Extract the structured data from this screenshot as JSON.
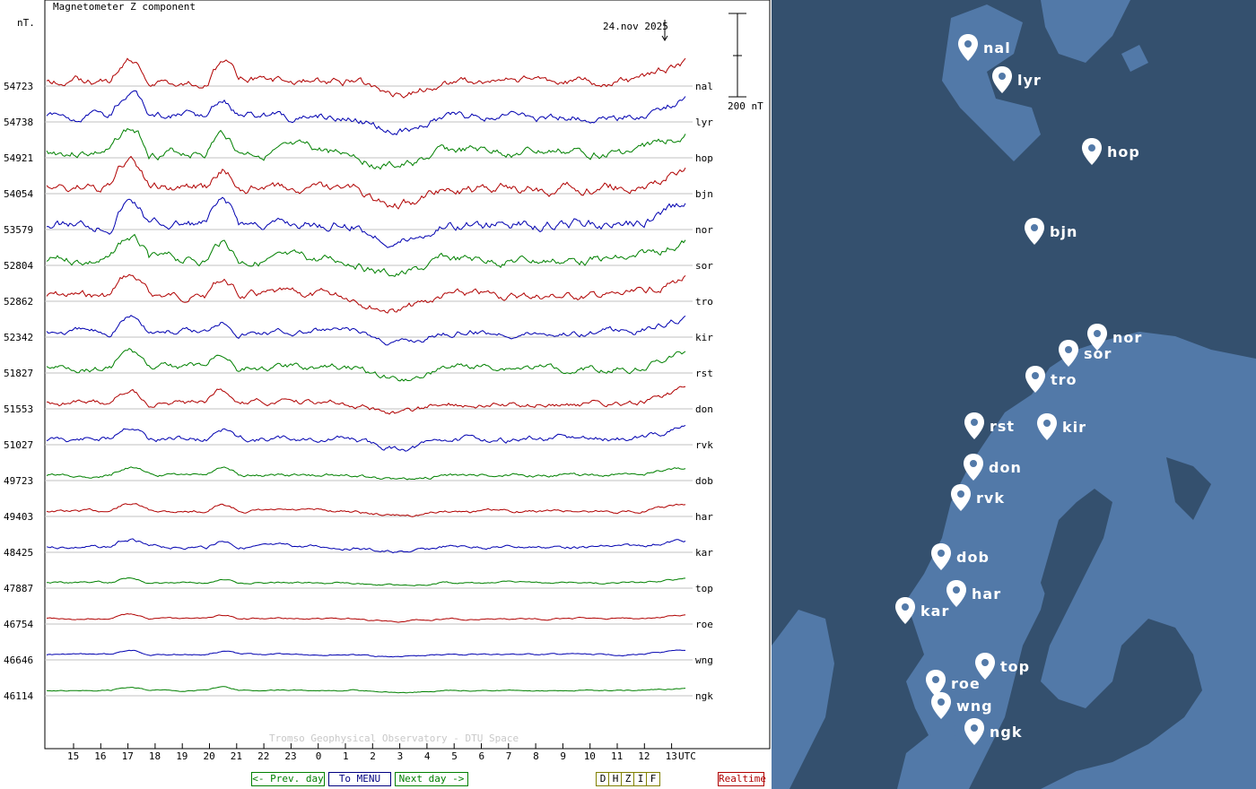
{
  "chart_data": {
    "type": "line",
    "title": "Magnetometer Z component",
    "ylabel": "nT.",
    "date_label": "24.nov 2025",
    "scale_label": "200 nT",
    "watermark": "Tromso Geophysical Observatory - DTU Space",
    "x_unit": "UTC",
    "x_ticks": [
      "15",
      "16",
      "17",
      "18",
      "19",
      "20",
      "21",
      "22",
      "23",
      "0",
      "1",
      "2",
      "3",
      "4",
      "5",
      "6",
      "7",
      "8",
      "9",
      "10",
      "11",
      "12",
      "13"
    ],
    "grid": true,
    "series": [
      {
        "name": "nal",
        "baseline": "54723",
        "color": "#b00000",
        "amp": 1.0,
        "seed": 1
      },
      {
        "name": "lyr",
        "baseline": "54738",
        "color": "#0000b0",
        "amp": 1.0,
        "seed": 2
      },
      {
        "name": "hop",
        "baseline": "54921",
        "color": "#008000",
        "amp": 1.1,
        "seed": 3
      },
      {
        "name": "bjn",
        "baseline": "54054",
        "color": "#b00000",
        "amp": 1.2,
        "seed": 4
      },
      {
        "name": "nor",
        "baseline": "53579",
        "color": "#0000b0",
        "amp": 1.2,
        "seed": 5
      },
      {
        "name": "sor",
        "baseline": "52804",
        "color": "#008000",
        "amp": 1.1,
        "seed": 6
      },
      {
        "name": "tro",
        "baseline": "52862",
        "color": "#b00000",
        "amp": 1.0,
        "seed": 7
      },
      {
        "name": "kir",
        "baseline": "52342",
        "color": "#0000b0",
        "amp": 0.8,
        "seed": 8
      },
      {
        "name": "rst",
        "baseline": "51827",
        "color": "#008000",
        "amp": 0.8,
        "seed": 9
      },
      {
        "name": "don",
        "baseline": "51553",
        "color": "#b00000",
        "amp": 0.7,
        "seed": 10
      },
      {
        "name": "rvk",
        "baseline": "51027",
        "color": "#0000b0",
        "amp": 0.7,
        "seed": 11
      },
      {
        "name": "dob",
        "baseline": "49723",
        "color": "#008000",
        "amp": 0.4,
        "seed": 12
      },
      {
        "name": "har",
        "baseline": "49403",
        "color": "#b00000",
        "amp": 0.35,
        "seed": 13
      },
      {
        "name": "kar",
        "baseline": "48425",
        "color": "#0000b0",
        "amp": 0.4,
        "seed": 14
      },
      {
        "name": "top",
        "baseline": "47887",
        "color": "#008000",
        "amp": 0.22,
        "seed": 15
      },
      {
        "name": "roe",
        "baseline": "46754",
        "color": "#b00000",
        "amp": 0.2,
        "seed": 16
      },
      {
        "name": "wng",
        "baseline": "46646",
        "color": "#0000b0",
        "amp": 0.18,
        "seed": 17
      },
      {
        "name": "ngk",
        "baseline": "46114",
        "color": "#008000",
        "amp": 0.15,
        "seed": 18
      }
    ]
  },
  "buttons": {
    "prev_day": "<- Prev. day",
    "menu": "To MENU",
    "next_day": "Next day ->",
    "components": [
      "D",
      "H",
      "Z",
      "I",
      "F"
    ],
    "realtime": "Realtime"
  },
  "map": {
    "colors": {
      "sea": "#34506e",
      "land": "#5279a8",
      "pin": "#ffffff"
    },
    "stations": [
      "nal",
      "lyr",
      "hop",
      "bjn",
      "nor",
      "sor",
      "tro",
      "rst",
      "kir",
      "don",
      "rvk",
      "dob",
      "har",
      "kar",
      "top",
      "roe",
      "wng",
      "ngk"
    ]
  }
}
